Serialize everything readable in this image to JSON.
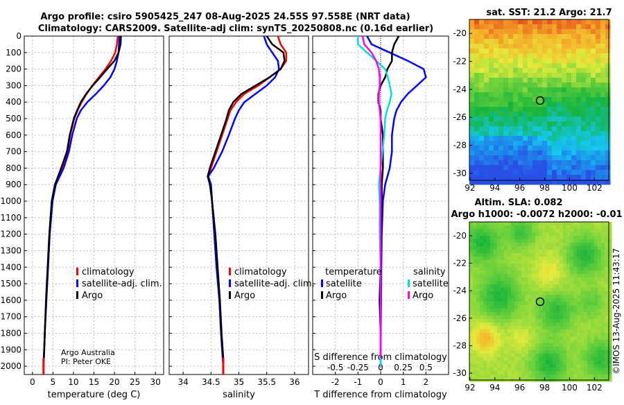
{
  "header": {
    "line1": "Argo profile: csiro 5905425_247 08-Aug-2025 24.55S 97.558E (NRT data)",
    "line2": "Climatology: CARS2009. Satellite-adj clim: synTS_20250808.nc (0.16d earlier)"
  },
  "colors": {
    "climatology": "#ff0000",
    "satellite": "#0000ff",
    "argo": "#000000",
    "t_sat": "#00e0e0",
    "s_argo": "#ff00ff",
    "s_sat": "#0000ff"
  },
  "depth_ticks": [
    "0",
    "100",
    "200",
    "300",
    "400",
    "500",
    "600",
    "700",
    "800",
    "900",
    "1000",
    "1100",
    "1200",
    "1300",
    "1400",
    "1500",
    "1600",
    "1700",
    "1800",
    "1900",
    "2000"
  ],
  "legend": {
    "climatology": "climatology",
    "satellite": "satellite-adj. clim.",
    "argo": "Argo"
  },
  "diff_legend": {
    "temperature": "temperature",
    "salinity": "salinity",
    "satellite": "satellite",
    "argo": "Argo"
  },
  "credit": {
    "line1": "Argo Australia",
    "line2": "PI: Peter OKE"
  },
  "right": {
    "sst_title": "sat. SST: 21.2 Argo: 21.7",
    "sla_title1": "Altim. SLA: 0.082",
    "sla_title2": "Argo h1000: -0.0072 h2000: -0.01",
    "lat_ticks": [
      "-20",
      "-22",
      "-24",
      "-26",
      "-28",
      "-30"
    ],
    "lon_ticks": [
      "92",
      "94",
      "96",
      "98",
      "100",
      "102"
    ],
    "imos": "©IMOS 13-Aug-2025 11:43:17"
  },
  "chart_data": [
    {
      "type": "line",
      "title": "",
      "xlabel": "temperature (deg C)",
      "ylabel": "",
      "xlim": [
        -2,
        32
      ],
      "ylim": [
        2050,
        0
      ],
      "xticks": [
        "0",
        "5",
        "10",
        "15",
        "20",
        "25",
        "30"
      ],
      "series": [
        {
          "name": "climatology",
          "depth": [
            0,
            50,
            100,
            150,
            200,
            250,
            300,
            350,
            400,
            450,
            500,
            600,
            700,
            800,
            900,
            1000,
            1200,
            1400,
            1600,
            1800,
            2000
          ],
          "values": [
            20.8,
            20.6,
            20.2,
            19.2,
            17.8,
            16.2,
            14.6,
            13.2,
            12.0,
            11.0,
            10.2,
            9.2,
            8.5,
            7.2,
            5.5,
            4.8,
            4.2,
            3.8,
            3.4,
            3.0,
            2.7
          ]
        },
        {
          "name": "satellite-adj. clim.",
          "depth": [
            0,
            50,
            100,
            150,
            200,
            250,
            300,
            350,
            400,
            450,
            500,
            600,
            700,
            800,
            900,
            1000,
            1200,
            1400,
            1600,
            1800,
            2000
          ],
          "values": [
            21.2,
            21.1,
            21.0,
            20.6,
            20.0,
            19.0,
            17.4,
            15.5,
            13.4,
            11.8,
            10.8,
            9.7,
            8.9,
            7.6,
            5.7,
            4.9,
            4.2,
            3.8,
            3.4,
            3.0,
            2.7
          ]
        },
        {
          "name": "Argo",
          "depth": [
            0,
            50,
            100,
            150,
            200,
            250,
            300,
            350,
            400,
            450,
            500,
            600,
            700,
            800,
            900,
            1000,
            1200,
            1400,
            1600,
            1800,
            1950
          ],
          "values": [
            21.6,
            21.5,
            21.0,
            20.0,
            18.2,
            16.5,
            14.7,
            13.1,
            11.8,
            10.9,
            10.1,
            9.1,
            8.4,
            7.0,
            5.5,
            4.7,
            4.1,
            3.7,
            3.3,
            3.0,
            2.8
          ]
        }
      ]
    },
    {
      "type": "line",
      "title": "",
      "xlabel": "salinity",
      "ylabel": "",
      "xlim": [
        33.75,
        36.25
      ],
      "ylim": [
        2050,
        0
      ],
      "xticks": [
        "34",
        "34.5",
        "35",
        "35.5",
        "36"
      ],
      "series": [
        {
          "name": "climatology",
          "depth": [
            0,
            50,
            100,
            150,
            200,
            250,
            300,
            350,
            400,
            450,
            500,
            600,
            700,
            800,
            850,
            900,
            1000,
            1200,
            1400,
            1600,
            1800,
            2000
          ],
          "values": [
            35.7,
            35.75,
            35.85,
            35.85,
            35.75,
            35.55,
            35.35,
            35.1,
            34.95,
            34.85,
            34.8,
            34.7,
            34.6,
            34.5,
            34.45,
            34.5,
            34.52,
            34.56,
            34.6,
            34.65,
            34.68,
            34.72
          ]
        },
        {
          "name": "satellite-adj. clim.",
          "depth": [
            0,
            50,
            100,
            150,
            200,
            250,
            300,
            350,
            400,
            450,
            500,
            600,
            700,
            800,
            850,
            900,
            1000,
            1200,
            1400,
            1600,
            1800,
            2000
          ],
          "values": [
            35.45,
            35.5,
            35.6,
            35.7,
            35.72,
            35.65,
            35.5,
            35.3,
            35.1,
            35.0,
            34.93,
            34.82,
            34.7,
            34.55,
            34.45,
            34.5,
            34.52,
            34.56,
            34.6,
            34.65,
            34.68,
            34.72
          ]
        },
        {
          "name": "Argo",
          "depth": [
            0,
            50,
            100,
            150,
            200,
            250,
            300,
            350,
            400,
            450,
            500,
            600,
            700,
            800,
            850,
            900,
            1000,
            1200,
            1400,
            1600,
            1800,
            1950
          ],
          "values": [
            35.5,
            35.6,
            35.8,
            35.82,
            35.75,
            35.55,
            35.3,
            35.05,
            34.9,
            34.82,
            34.78,
            34.68,
            34.58,
            34.48,
            34.44,
            34.48,
            34.52,
            34.58,
            34.62,
            34.66,
            34.69,
            34.72
          ]
        }
      ]
    },
    {
      "type": "line",
      "title": "",
      "xlabel": "T difference from climatology",
      "x2label": "S difference from climatology",
      "ylabel": "",
      "xlim": [
        -3,
        3
      ],
      "x2lim": [
        -0.75,
        0.75
      ],
      "ylim": [
        2050,
        0
      ],
      "xticks": [
        "-2",
        "-1",
        "0",
        "1",
        "2"
      ],
      "x2ticks": [
        "-0.5",
        "-0.25",
        "0",
        "0.25",
        "0.5"
      ],
      "series": [
        {
          "name": "T satellite",
          "depth": [
            0,
            50,
            100,
            150,
            200,
            250,
            300,
            350,
            400,
            450,
            500,
            600,
            700,
            800,
            900,
            1000,
            1200,
            1400,
            1600,
            1800,
            2000
          ],
          "values": [
            -0.6,
            -0.4,
            0.4,
            1.2,
            1.9,
            2.0,
            1.6,
            1.2,
            0.9,
            0.7,
            0.6,
            0.5,
            0.5,
            0.4,
            0.2,
            0.1,
            0.05,
            0.03,
            0.02,
            0.01,
            0.0
          ]
        },
        {
          "name": "T Argo",
          "depth": [
            0,
            50,
            100,
            150,
            200,
            250,
            300,
            350,
            400,
            450,
            500,
            600,
            700,
            800,
            900,
            1000,
            1200,
            1400,
            1600,
            1800,
            1950
          ],
          "values": [
            0.8,
            0.6,
            0.5,
            0.5,
            0.3,
            0.2,
            0.0,
            -0.1,
            -0.1,
            0.0,
            0.0,
            0.1,
            0.1,
            0.1,
            0.05,
            0.05,
            0.02,
            0.0,
            -0.05,
            0.0,
            0.0
          ]
        },
        {
          "name": "S satellite",
          "depth": [
            0,
            50,
            100,
            150,
            200,
            250,
            300,
            350,
            400,
            450,
            500,
            600,
            700,
            800,
            900,
            1000,
            1200,
            1400,
            1600,
            1800,
            2000
          ],
          "values": [
            -0.25,
            -0.25,
            -0.15,
            -0.05,
            0.05,
            0.08,
            0.1,
            0.12,
            0.1,
            0.07,
            0.05,
            0.04,
            0.02,
            0.0,
            -0.02,
            -0.01,
            -0.01,
            0.0,
            0.0,
            0.0,
            0.0
          ]
        },
        {
          "name": "S Argo",
          "depth": [
            0,
            50,
            100,
            150,
            200,
            250,
            300,
            350,
            400,
            450,
            500,
            600,
            700,
            800,
            900,
            1000,
            1200,
            1400,
            1600,
            1800,
            1950
          ],
          "values": [
            -0.2,
            -0.18,
            -0.1,
            -0.05,
            -0.02,
            -0.01,
            -0.01,
            -0.02,
            -0.02,
            -0.01,
            0.0,
            0.0,
            0.0,
            0.0,
            0.0,
            0.0,
            0.0,
            0.0,
            0.0,
            0.0,
            0.0
          ]
        }
      ]
    }
  ]
}
